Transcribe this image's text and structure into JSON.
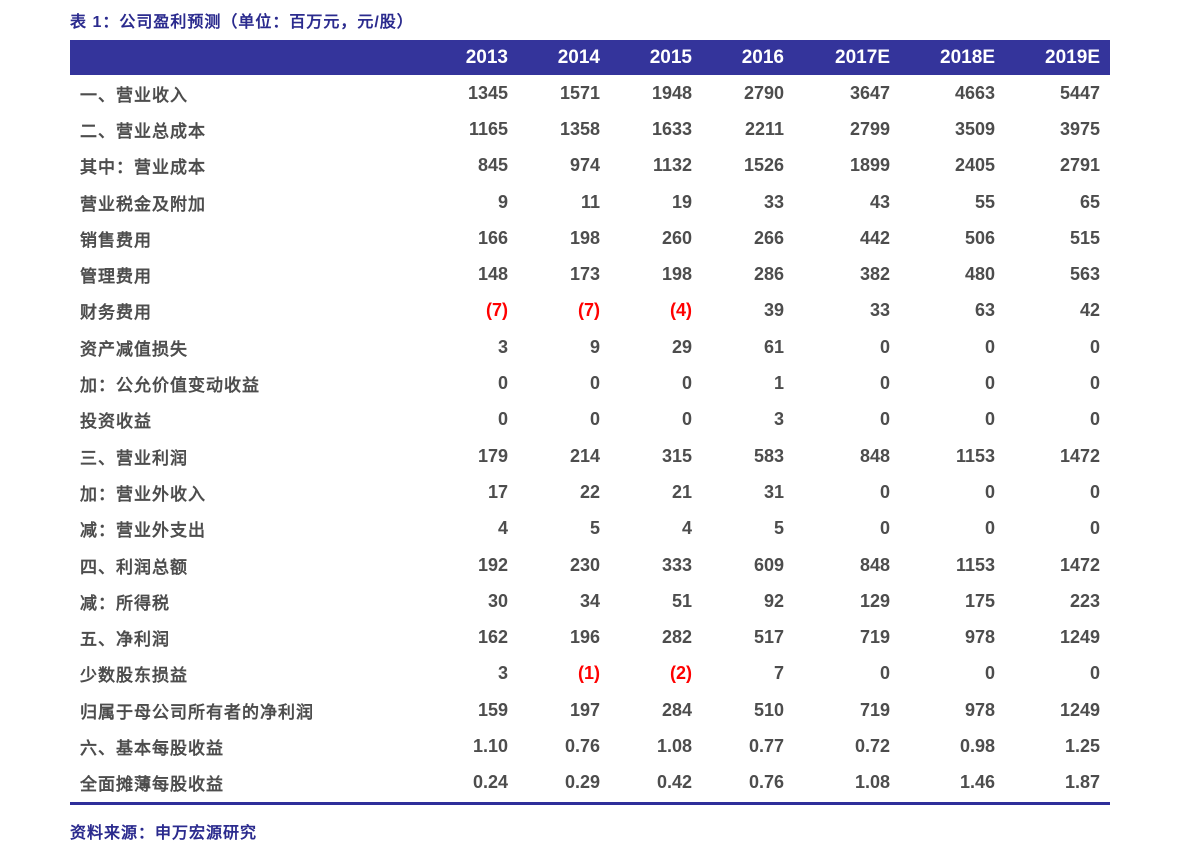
{
  "title": "表 1：公司盈利预测（单位：百万元，元/股）",
  "source_note": "资料来源：申万宏源研究",
  "colors": {
    "header_bg": "#34349B",
    "accent_blue": "#2B2B8E",
    "body_text": "#4D4D4D",
    "negative_red": "#FF0000",
    "bottom_rule": "#2E2E9A"
  },
  "chart_data": {
    "type": "table",
    "title": "表 1：公司盈利预测（单位：百万元，元/股）",
    "unit": "百万元, 元/股",
    "columns": [
      "2013",
      "2014",
      "2015",
      "2016",
      "2017E",
      "2018E",
      "2019E"
    ],
    "rows": [
      {
        "label": "一、营业收入",
        "values": [
          "1345",
          "1571",
          "1948",
          "2790",
          "3647",
          "4663",
          "5447"
        ]
      },
      {
        "label": "二、营业总成本",
        "values": [
          "1165",
          "1358",
          "1633",
          "2211",
          "2799",
          "3509",
          "3975"
        ]
      },
      {
        "label": "其中：营业成本",
        "values": [
          "845",
          "974",
          "1132",
          "1526",
          "1899",
          "2405",
          "2791"
        ]
      },
      {
        "label": "营业税金及附加",
        "values": [
          "9",
          "11",
          "19",
          "33",
          "43",
          "55",
          "65"
        ]
      },
      {
        "label": "销售费用",
        "values": [
          "166",
          "198",
          "260",
          "266",
          "442",
          "506",
          "515"
        ]
      },
      {
        "label": "管理费用",
        "values": [
          "148",
          "173",
          "198",
          "286",
          "382",
          "480",
          "563"
        ]
      },
      {
        "label": "财务费用",
        "values": [
          "(7)",
          "(7)",
          "(4)",
          "39",
          "33",
          "63",
          "42"
        ]
      },
      {
        "label": "资产减值损失",
        "values": [
          "3",
          "9",
          "29",
          "61",
          "0",
          "0",
          "0"
        ]
      },
      {
        "label": "加：公允价值变动收益",
        "values": [
          "0",
          "0",
          "0",
          "1",
          "0",
          "0",
          "0"
        ]
      },
      {
        "label": "投资收益",
        "values": [
          "0",
          "0",
          "0",
          "3",
          "0",
          "0",
          "0"
        ]
      },
      {
        "label": "三、营业利润",
        "values": [
          "179",
          "214",
          "315",
          "583",
          "848",
          "1153",
          "1472"
        ]
      },
      {
        "label": "加：营业外收入",
        "values": [
          "17",
          "22",
          "21",
          "31",
          "0",
          "0",
          "0"
        ]
      },
      {
        "label": "减：营业外支出",
        "values": [
          "4",
          "5",
          "4",
          "5",
          "0",
          "0",
          "0"
        ]
      },
      {
        "label": "四、利润总额",
        "values": [
          "192",
          "230",
          "333",
          "609",
          "848",
          "1153",
          "1472"
        ]
      },
      {
        "label": "减：所得税",
        "values": [
          "30",
          "34",
          "51",
          "92",
          "129",
          "175",
          "223"
        ]
      },
      {
        "label": "五、净利润",
        "values": [
          "162",
          "196",
          "282",
          "517",
          "719",
          "978",
          "1249"
        ]
      },
      {
        "label": "少数股东损益",
        "values": [
          "3",
          "(1)",
          "(2)",
          "7",
          "0",
          "0",
          "0"
        ]
      },
      {
        "label": "归属于母公司所有者的净利润",
        "values": [
          "159",
          "197",
          "284",
          "510",
          "719",
          "978",
          "1249"
        ]
      },
      {
        "label": "六、基本每股收益",
        "values": [
          "1.10",
          "0.76",
          "1.08",
          "0.77",
          "0.72",
          "0.98",
          "1.25"
        ]
      },
      {
        "label": "全面摊薄每股收益",
        "values": [
          "0.24",
          "0.29",
          "0.42",
          "0.76",
          "1.08",
          "1.46",
          "1.87"
        ]
      }
    ],
    "negative_format": "parentheses-red",
    "source": "资料来源：申万宏源研究",
    "layout_hints": {
      "grid": "off",
      "value_alignment": "right",
      "header_style": "white-on-dark-blue"
    }
  }
}
